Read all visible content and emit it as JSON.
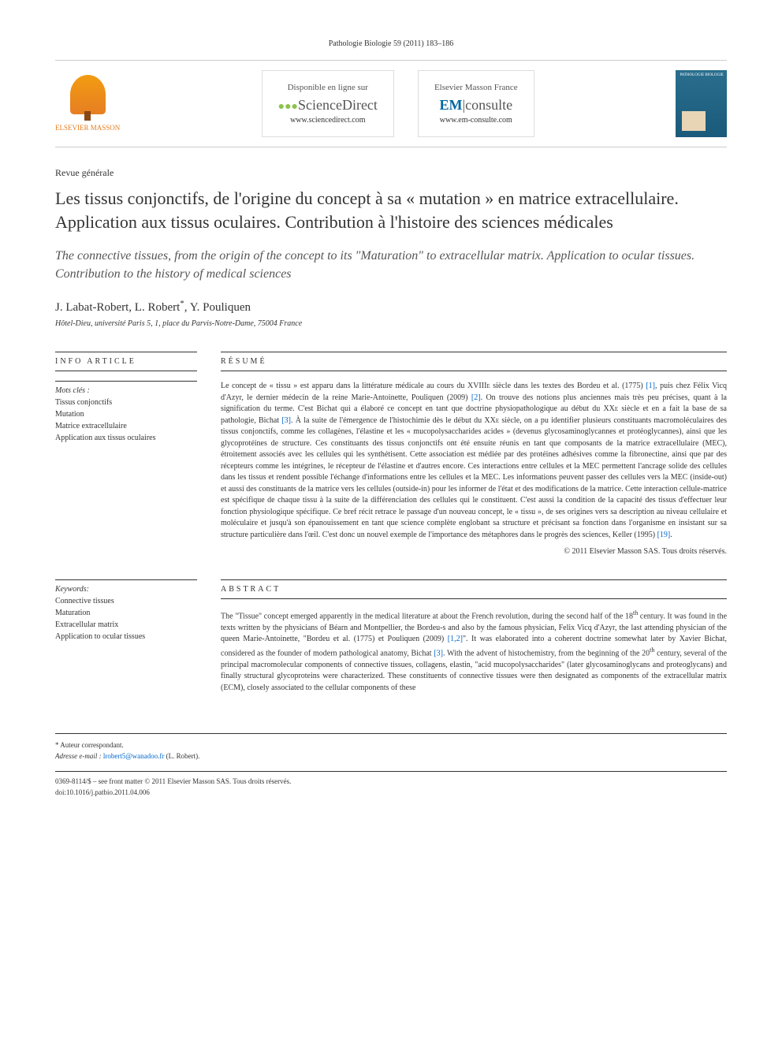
{
  "header": {
    "citation": "Pathologie Biologie 59 (2011) 183–186",
    "publisher_name": "ELSEVIER MASSON",
    "service1_label": "Disponible en ligne sur",
    "service1_name": "ScienceDirect",
    "service1_url": "www.sciencedirect.com",
    "service2_label": "Elsevier Masson France",
    "service2_name_prefix": "EM",
    "service2_name_suffix": "consulte",
    "service2_url": "www.em-consulte.com",
    "journal_cover_text": "PATHOLOGIE BIOLOGIE"
  },
  "article": {
    "type": "Revue générale",
    "title": "Les tissus conjonctifs, de l'origine du concept à sa « mutation » en matrice extracellulaire. Application aux tissus oculaires. Contribution à l'histoire des sciences médicales",
    "subtitle": "The connective tissues, from the origin of the concept to its \"Maturation\" to extracellular matrix. Application to ocular tissues. Contribution to the history of medical sciences",
    "authors": "J. Labat-Robert, L. Robert",
    "authors_suffix": ", Y. Pouliquen",
    "affiliation": "Hôtel-Dieu, université Paris 5, 1, place du Parvis-Notre-Dame, 75004 France"
  },
  "info": {
    "header": "INFO ARTICLE",
    "mots_cles_label": "Mots clés :",
    "mots_cles": "Tissus conjonctifs\nMutation\nMatrice extracellulaire\nApplication aux tissus oculaires",
    "keywords_label": "Keywords:",
    "keywords": "Connective tissues\nMaturation\nExtracellular matrix\nApplication to ocular tissues"
  },
  "resume": {
    "header": "RÉSUMÉ",
    "text_part1": "Le concept de « tissu » est apparu dans la littérature médicale au cours du ",
    "text_sup1": "XVIIIe",
    "text_part2": " siècle dans les textes des Bordeu et al. (1775) ",
    "ref1": "[1]",
    "text_part3": ", puis chez Félix Vicq d'Azyr, le dernier médecin de la reine Marie-Antoinette, Pouliquen (2009) ",
    "ref2": "[2]",
    "text_part4": ". On trouve des notions plus anciennes mais très peu précises, quant à la signification du terme. C'est Bichat qui a élaboré ce concept en tant que doctrine physiopathologique au début du ",
    "text_sup2": "XXe",
    "text_part5": " siècle et en a fait la base de sa pathologie, Bichat ",
    "ref3": "[3]",
    "text_part6": ". À la suite de l'émergence de l'histochimie dès le début du ",
    "text_sup3": "XXe",
    "text_part7": " siècle, on a pu identifier plusieurs constituants macromoléculaires des tissus conjonctifs, comme les collagènes, l'élastine et les « mucopolysaccharides acides » (devenus glycosaminoglycannes et protéoglycannes), ainsi que les glycoprotéines de structure. Ces constituants des tissus conjonctifs ont été ensuite réunis en tant que composants de la matrice extracellulaire (MEC), étroitement associés avec les cellules qui les synthétisent. Cette association est médiée par des protéines adhésives comme la fibronectine, ainsi que par des récepteurs comme les intégrines, le récepteur de l'élastine et d'autres encore. Ces interactions entre cellules et la MEC permettent l'ancrage solide des cellules dans les tissus et rendent possible l'échange d'informations entre les cellules et la MEC. Les informations peuvent passer des cellules vers la MEC (inside-out) et aussi des constituants de la matrice vers les cellules (outside-in) pour les informer de l'état et des modifications de la matrice. Cette interaction cellule-matrice est spécifique de chaque tissu à la suite de la différenciation des cellules qui le constituent. C'est aussi la condition de la capacité des tissus d'effectuer leur fonction physiologique spécifique. Ce bref récit retrace le passage d'un nouveau concept, le « tissu », de ses origines vers sa description au niveau cellulaire et moléculaire et jusqu'à son épanouissement en tant que science complète englobant sa structure et précisant sa fonction dans l'organisme en insistant sur sa structure particulière dans l'œil. C'est donc un nouvel exemple de l'importance des métaphores dans le progrès des sciences, Keller (1995) ",
    "ref19": "[19]",
    "text_part8": ".",
    "copyright": "© 2011 Elsevier Masson SAS. Tous droits réservés."
  },
  "abstract": {
    "header": "ABSTRACT",
    "text_part1": "The \"Tissue\" concept emerged apparently in the medical literature at about the French revolution, during the second half of the 18",
    "text_sup1": "th",
    "text_part2": " century. It was found in the texts written by the physicians of Béarn and Montpellier, the Bordeu-s and also by the famous physician, Felix Vicq d'Azyr, the last attending physician of the queen Marie-Antoinette, \"Bordeu et al. (1775) et Pouliquen (2009) ",
    "ref12": "[1,2]",
    "text_part3": "\". It was elaborated into a coherent doctrine somewhat later by Xavier Bichat, considered as the founder of modern pathological anatomy, Bichat ",
    "ref3": "[3]",
    "text_part4": ". With the advent of histochemistry, from the beginning of the 20",
    "text_sup2": "th",
    "text_part5": " century, several of the principal macromolecular components of connective tissues, collagens, elastin, \"acid mucopolysaccharides\" (later glycosaminoglycans and proteoglycans) and finally structural glycoproteins were characterized. These constituents of connective tissues were then designated as components of the extracellular matrix (ECM), closely associated to the cellular components of these"
  },
  "footer": {
    "corresponding_label": "* Auteur correspondant.",
    "email_label": "Adresse e-mail : ",
    "email": "lrobert5@wanadoo.fr",
    "email_author": " (L. Robert).",
    "issn_line": "0369-8114/$ – see front matter © 2011 Elsevier Masson SAS. Tous droits réservés.",
    "doi": "doi:10.1016/j.patbio.2011.04.006"
  }
}
